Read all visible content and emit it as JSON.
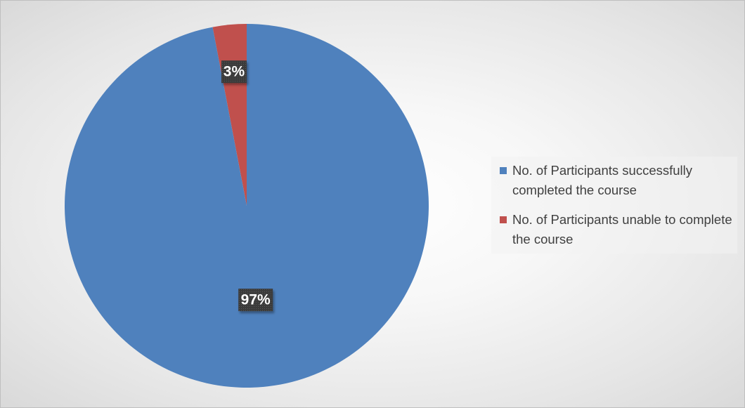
{
  "chart_data": {
    "type": "pie",
    "title": "",
    "slices": [
      {
        "label": "No. of Participants successfully completed the course",
        "value": 97,
        "display": "97%",
        "color": "#4f81bd"
      },
      {
        "label": "No. of Participants unable to complete the course",
        "value": 3,
        "display": "3%",
        "color": "#c0504d"
      }
    ],
    "legend_position": "right",
    "start_angle_deg": 0,
    "direction": "clockwise"
  }
}
